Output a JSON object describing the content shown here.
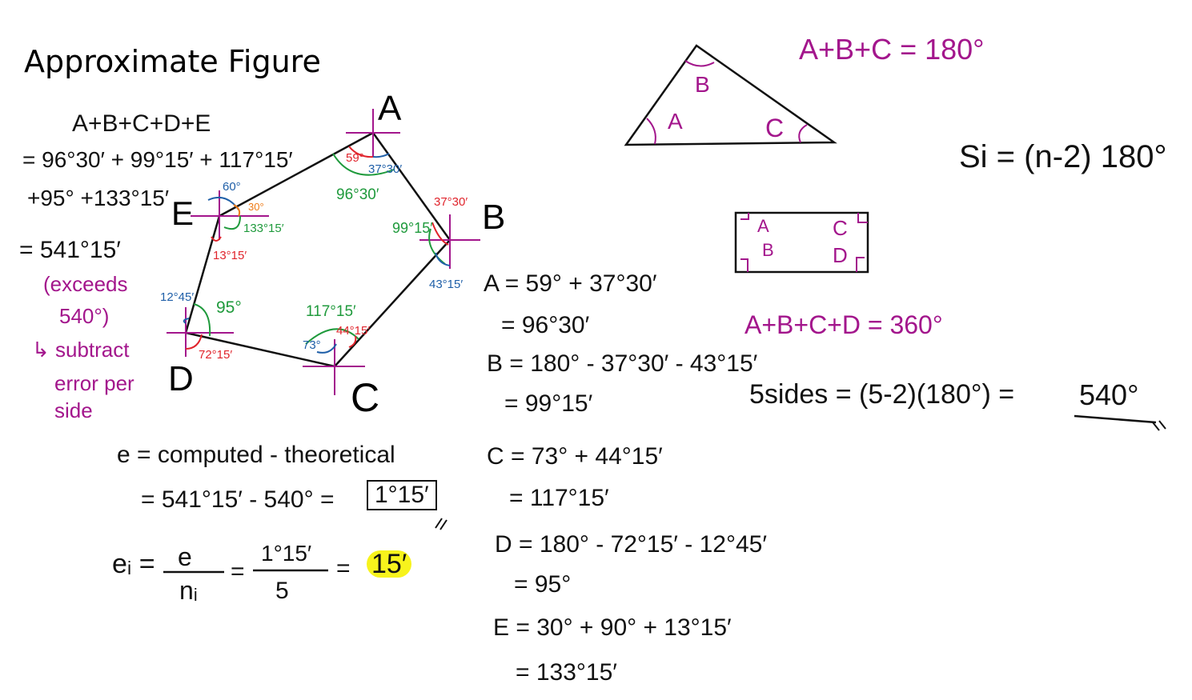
{
  "title": "Approximate Figure",
  "sum_block": {
    "line1": "A+B+C+D+E",
    "line2": "= 96°30′ + 99°15′ + 117°15′",
    "line3": "+95° +133°15′",
    "line4": "= 541°15′"
  },
  "note": {
    "line1": "(exceeds",
    "line2": "540°)",
    "line3": "↳ subtract",
    "line4": "error per",
    "line5": "side"
  },
  "vertices": {
    "a": "A",
    "b": "B",
    "c": "C",
    "d": "D",
    "e": "E"
  },
  "angle_labels": {
    "a_59": "59°",
    "a_37_30": "37°30′",
    "a_96_30": "96°30′",
    "b_37_30": "37°30′",
    "b_99_15": "99°15′",
    "b_43_15": "43°15′",
    "c_117_15": "117°15′",
    "c_44_15": "44°15′",
    "c_73": "73°",
    "d_12_45": "12°45′",
    "d_95": "95°",
    "d_72_15": "72°15′",
    "e_60": "60°",
    "e_30": "30°",
    "e_133_15": "133°15′",
    "e_13_15": "13°15′"
  },
  "error_block": {
    "line1": "e = computed - theoretical",
    "line2_prefix": "= 541°15′ - 540° =",
    "boxed": "1°15′",
    "per_side_lhs_num": "e",
    "per_side_lhs_den": "nᵢ",
    "per_side_prefix": "eᵢ =",
    "fraction_num": "1°15′",
    "fraction_den": "5",
    "result": "15′"
  },
  "calc_block": {
    "a1": "A = 59° + 37°30′",
    "a2": "= 96°30′",
    "b1": "B = 180° - 37°30′ - 43°15′",
    "b2": "= 99°15′",
    "c1": "C = 73° + 44°15′",
    "c2": "= 117°15′",
    "d1": "D = 180° - 72°15′ - 12°45′",
    "d2": "= 95°",
    "e1": "E = 30° + 90° + 13°15′",
    "e2": "= 133°15′"
  },
  "triangle": {
    "formula": "A+B+C = 180°",
    "a": "A",
    "b": "B",
    "c": "C"
  },
  "si_formula": "Si = (n-2) 180°",
  "rectangle": {
    "a": "A",
    "b": "B",
    "c": "C",
    "d": "D",
    "formula": "A+B+C+D = 360°"
  },
  "five_sides": {
    "lhs": "5sides = (5-2)(180°) =",
    "result": "540°"
  },
  "colors": {
    "magenta": "#a3168c",
    "red": "#e0242c",
    "blue": "#1f5fa8",
    "green": "#1f9a3c",
    "orange": "#ee7a16",
    "highlight": "#f7f31c"
  }
}
